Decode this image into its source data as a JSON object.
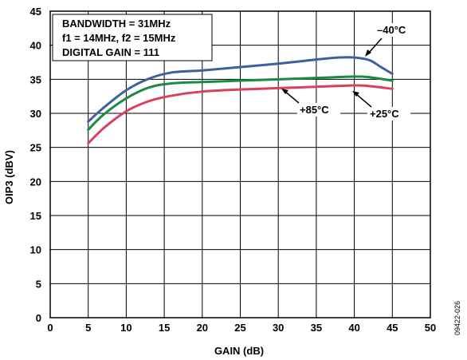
{
  "figure_id": "09422-026",
  "chart_data": {
    "type": "line",
    "xlabel": "GAIN (dB)",
    "ylabel": "OIP3 (dBV)",
    "xlim": [
      0,
      50
    ],
    "ylim": [
      0,
      45
    ],
    "xticks": [
      0,
      5,
      10,
      15,
      20,
      25,
      30,
      35,
      40,
      45,
      50
    ],
    "yticks": [
      0,
      5,
      10,
      15,
      20,
      25,
      30,
      35,
      40,
      45
    ],
    "grid": true,
    "annotation_box": {
      "lines": [
        "BANDWIDTH = 31MHz",
        "f1 = 14MHz, f2 = 15MHz",
        "DIGITAL GAIN = 111"
      ],
      "placement": "top-left"
    },
    "series": [
      {
        "name": "–40°C",
        "color": "#3f5f9e",
        "x": [
          5,
          7,
          10,
          13,
          16,
          20,
          25,
          30,
          35,
          38,
          40,
          42,
          43.5,
          45
        ],
        "y": [
          28.8,
          30.8,
          33.4,
          35.1,
          36.0,
          36.3,
          36.8,
          37.3,
          37.9,
          38.2,
          38.2,
          37.8,
          36.8,
          35.8
        ]
      },
      {
        "name": "+25°C",
        "color": "#1b8a45",
        "x": [
          5,
          7,
          10,
          13,
          16,
          20,
          25,
          30,
          35,
          40,
          42,
          45
        ],
        "y": [
          27.6,
          29.8,
          32.2,
          33.8,
          34.4,
          34.6,
          34.8,
          35.0,
          35.2,
          35.4,
          35.3,
          34.8
        ]
      },
      {
        "name": "+85°C",
        "color": "#d94060",
        "x": [
          5,
          7,
          10,
          13,
          16,
          20,
          25,
          30,
          35,
          40,
          42,
          45
        ],
        "y": [
          25.6,
          27.8,
          30.3,
          31.8,
          32.6,
          33.2,
          33.5,
          33.7,
          33.9,
          34.1,
          34.0,
          33.6
        ]
      }
    ]
  }
}
